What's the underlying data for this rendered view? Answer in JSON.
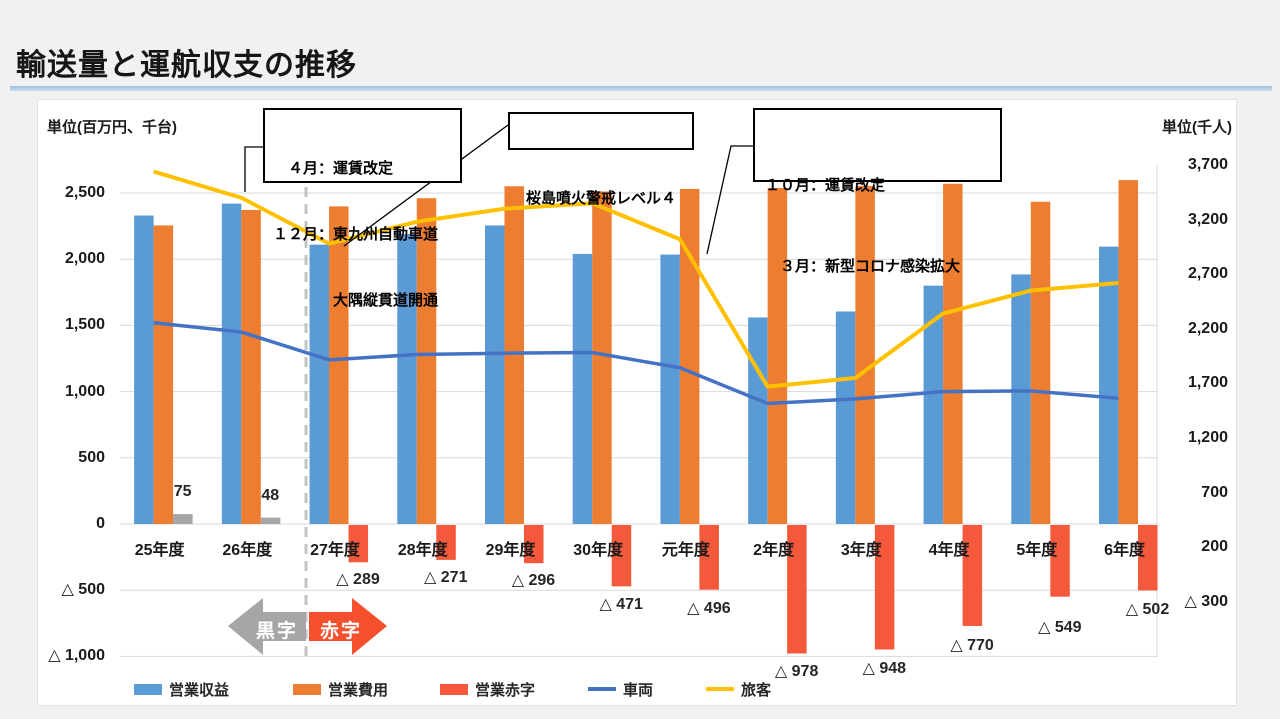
{
  "title": "輸送量と運航収支の推移",
  "left_axis": {
    "unit": "単位(百万円、千台)",
    "ticks": [
      {
        "value": 2500,
        "label": "2,500"
      },
      {
        "value": 2000,
        "label": "2,000"
      },
      {
        "value": 1500,
        "label": "1,500"
      },
      {
        "value": 1000,
        "label": "1,000"
      },
      {
        "value": 500,
        "label": "500"
      },
      {
        "value": 0,
        "label": "0"
      },
      {
        "value": -500,
        "label": "△ 500"
      },
      {
        "value": -1000,
        "label": "△ 1,000"
      }
    ]
  },
  "right_axis": {
    "unit": "単位(千人)",
    "max": 3700,
    "ticks": [
      {
        "value": 3700,
        "label": "3,700"
      },
      {
        "value": 3200,
        "label": "3,200"
      },
      {
        "value": 2700,
        "label": "2,700"
      },
      {
        "value": 2200,
        "label": "2,200"
      },
      {
        "value": 1700,
        "label": "1,700"
      },
      {
        "value": 1200,
        "label": "1,200"
      },
      {
        "value": 700,
        "label": "700"
      },
      {
        "value": 200,
        "label": "200"
      },
      {
        "value": -300,
        "label": "△ 300"
      }
    ]
  },
  "chart_data": {
    "type": "combo bar+line, dual axis",
    "categories": [
      "25年度",
      "26年度",
      "27年度",
      "28年度",
      "29年度",
      "30年度",
      "元年度",
      "2年度",
      "3年度",
      "4年度",
      "5年度",
      "6年度"
    ],
    "left_axis_range": [
      -1000,
      2500
    ],
    "right_axis_range": [
      -300,
      3700
    ],
    "grid": "horizontal",
    "series": [
      {
        "name": "営業収益",
        "type": "bar",
        "axis": "left",
        "color": "#5B9BD5",
        "values": [
          2330,
          2420,
          2110,
          2190,
          2255,
          2040,
          2035,
          1560,
          1605,
          1800,
          1885,
          2095
        ]
      },
      {
        "name": "営業費用",
        "type": "bar",
        "axis": "left",
        "color": "#ED7D31",
        "values": [
          2255,
          2372,
          2399,
          2461,
          2551,
          2511,
          2531,
          2538,
          2553,
          2570,
          2434,
          2597
        ]
      },
      {
        "name": "営業黒字",
        "type": "bar",
        "axis": "left",
        "color": "#A6A6A6",
        "values": [
          75,
          48,
          null,
          null,
          null,
          null,
          null,
          null,
          null,
          null,
          null,
          null
        ],
        "data_labels": [
          "75",
          "48",
          null,
          null,
          null,
          null,
          null,
          null,
          null,
          null,
          null,
          null
        ]
      },
      {
        "name": "営業赤字",
        "type": "bar",
        "axis": "left",
        "color": "#F4593B",
        "negative": true,
        "values": [
          null,
          null,
          289,
          271,
          296,
          471,
          496,
          978,
          948,
          770,
          549,
          502
        ],
        "data_labels": [
          null,
          null,
          "△ 289",
          "△ 271",
          "△ 296",
          "△ 471",
          "△ 496",
          "△ 978",
          "△ 948",
          "△ 770",
          "△ 549",
          "△ 502"
        ]
      },
      {
        "name": "車両",
        "type": "line",
        "axis": "left",
        "color": "#4472C4",
        "values": [
          1520,
          1450,
          1240,
          1280,
          1290,
          1295,
          1180,
          910,
          945,
          1000,
          1005,
          950
        ]
      },
      {
        "name": "旅客",
        "type": "line",
        "axis": "right",
        "color": "#FFC000",
        "values": [
          3640,
          3400,
          2980,
          3180,
          3300,
          3350,
          3020,
          1670,
          1750,
          2340,
          2550,
          2620
        ]
      }
    ]
  },
  "annotations": [
    {
      "lines": [
        "　４月：運賃改定",
        "１２月：東九州自動車道",
        "　　　　大隅縦貫道開通"
      ]
    },
    {
      "lines": [
        "桜島噴火警戒レベル４"
      ]
    },
    {
      "lines": [
        "１０月：運賃改定",
        "　３月：新型コロナ感染拡大"
      ]
    }
  ],
  "arrows": {
    "left_label": "黒字",
    "right_label": "赤字",
    "left_color": "#A6A6A6",
    "right_color": "#F4502E"
  },
  "legend": [
    {
      "label": "営業収益",
      "color": "#5B9BD5",
      "marker": "box"
    },
    {
      "label": "営業費用",
      "color": "#ED7D31",
      "marker": "box"
    },
    {
      "label": "営業赤字",
      "color": "#F4593B",
      "marker": "box"
    },
    {
      "label": "車両",
      "color": "#4472C4",
      "marker": "line"
    },
    {
      "label": "旅客",
      "color": "#FFC000",
      "marker": "line"
    }
  ],
  "colors": {
    "gridline": "#D9D9D9",
    "separator": "#C3C3C3",
    "leader": "#000000",
    "panel": "#FFFFFF",
    "background": "#F1F1F2"
  }
}
